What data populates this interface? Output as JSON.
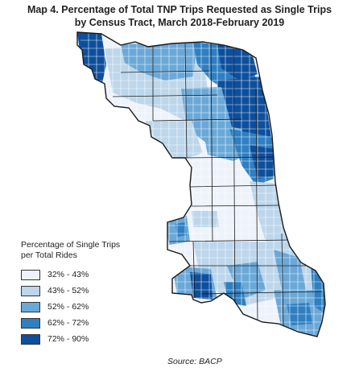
{
  "title_line1": "Map 4. Percentage of Total TNP Trips Requested as Single Trips",
  "title_line2": "by Census Tract, March 2018-February 2019",
  "legend": {
    "title_line1": "Percentage of Single Trips",
    "title_line2": "per Total Rides",
    "items": [
      {
        "label": "32% - 43%",
        "color": "#eef3fb"
      },
      {
        "label": "43% - 52%",
        "color": "#bdd6ea"
      },
      {
        "label": "52% - 62%",
        "color": "#6aa8d8"
      },
      {
        "label": "62% - 72%",
        "color": "#2f7fc1"
      },
      {
        "label": "72% - 90%",
        "color": "#0d4f9c"
      }
    ]
  },
  "source": "Source: BACP",
  "colors": {
    "class1": "#eef3fb",
    "class2": "#bdd6ea",
    "class3": "#6aa8d8",
    "class4": "#2f7fc1",
    "class5": "#0d4f9c",
    "boundary": "#1a1a1a"
  }
}
